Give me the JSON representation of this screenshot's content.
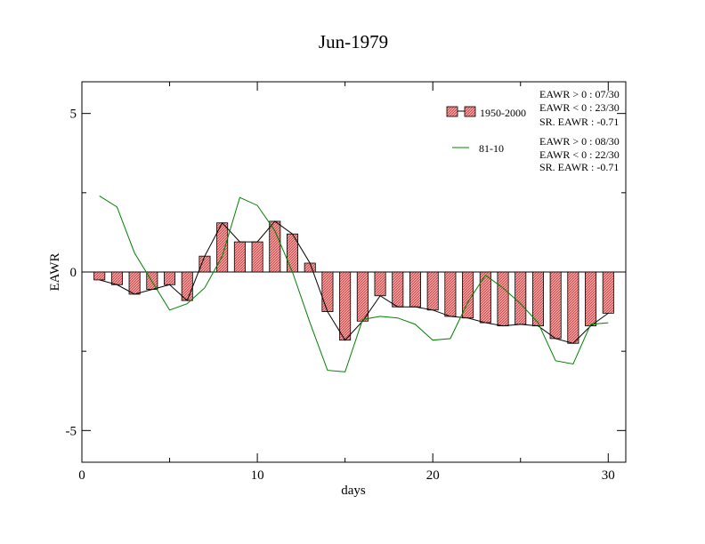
{
  "chart_data": {
    "type": "bar",
    "title": "Jun-1979",
    "xlabel": "days",
    "ylabel": "EAWR",
    "xlim": [
      0,
      31
    ],
    "ylim": [
      -6,
      6
    ],
    "x_ticks": [
      0,
      10,
      20,
      30
    ],
    "x_tick_labels": [
      "0",
      "10",
      "20",
      "30"
    ],
    "y_ticks": [
      5,
      0,
      -5
    ],
    "y_tick_labels": [
      "5",
      "0",
      "-5"
    ],
    "grid": false,
    "legend_position": "top-right",
    "x": [
      1,
      2,
      3,
      4,
      5,
      6,
      7,
      8,
      9,
      10,
      11,
      12,
      13,
      14,
      15,
      16,
      17,
      18,
      19,
      20,
      21,
      22,
      23,
      24,
      25,
      26,
      27,
      28,
      29,
      30
    ],
    "series": [
      {
        "name": "1950-2000",
        "kind": "bar",
        "color": "#f08080",
        "values": [
          -0.25,
          -0.4,
          -0.7,
          -0.55,
          -0.4,
          -0.9,
          0.5,
          1.55,
          0.95,
          0.95,
          1.6,
          1.2,
          0.28,
          -1.25,
          -2.15,
          -1.55,
          -0.75,
          -1.1,
          -1.1,
          -1.2,
          -1.4,
          -1.45,
          -1.6,
          -1.7,
          -1.65,
          -1.7,
          -2.1,
          -2.25,
          -1.7,
          -1.3
        ]
      },
      {
        "name": "81-10",
        "kind": "line",
        "color": "#008000",
        "values": [
          2.4,
          2.05,
          0.6,
          -0.3,
          -1.2,
          -1.0,
          -0.5,
          0.5,
          2.35,
          2.1,
          1.3,
          0.0,
          -1.6,
          -3.1,
          -3.15,
          -1.5,
          -1.4,
          -1.45,
          -1.65,
          -2.15,
          -2.1,
          -0.95,
          -0.1,
          -0.5,
          -1.0,
          -1.6,
          -2.8,
          -2.9,
          -1.65,
          -1.6
        ]
      }
    ],
    "legend": {
      "entries": [
        {
          "label": "1950-2000",
          "stats": [
            "EAWR > 0 : 07/30",
            "EAWR < 0 : 23/30",
            "SR. EAWR : -0.71"
          ]
        },
        {
          "label": "81-10",
          "stats": [
            "EAWR > 0 : 08/30",
            "EAWR < 0 : 22/30",
            "SR. EAWR : -0.71"
          ]
        }
      ]
    }
  }
}
